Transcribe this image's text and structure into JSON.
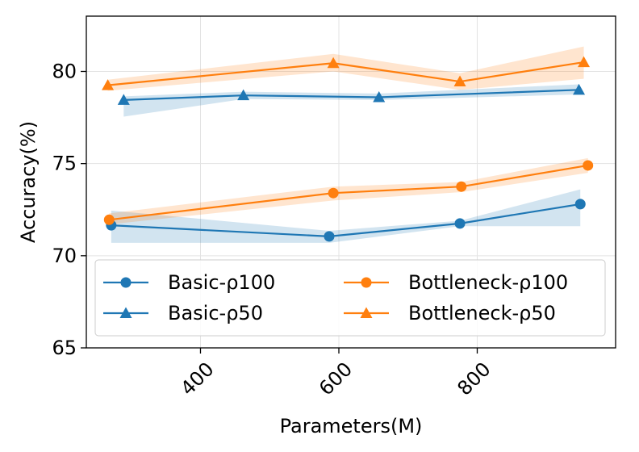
{
  "chart_data": {
    "type": "line",
    "title": "",
    "xlabel": "Parameters(M)",
    "ylabel": "Accuracy(%)",
    "xlim": [
      235,
      1000
    ],
    "ylim": [
      65,
      83
    ],
    "xticks": [
      400,
      600,
      800
    ],
    "xtick_labels": [
      "400",
      "600",
      "800"
    ],
    "yticks": [
      65,
      70,
      75,
      80
    ],
    "ytick_labels": [
      "65",
      "70",
      "75",
      "80"
    ],
    "grid": true,
    "legend": {
      "placement": "lower-left",
      "columns": 2
    },
    "series": [
      {
        "name": "Basic-ρ100",
        "color": "#1f77b4",
        "marker": "circle",
        "x": [
          271,
          586,
          775,
          949
        ],
        "y": [
          71.65,
          71.05,
          71.75,
          72.8
        ],
        "lower": [
          70.7,
          70.7,
          71.6,
          71.6
        ],
        "upper": [
          72.45,
          71.35,
          71.9,
          73.6
        ]
      },
      {
        "name": "Basic-ρ50",
        "color": "#1f77b4",
        "marker": "triangle",
        "x": [
          289,
          462,
          658,
          947
        ],
        "y": [
          78.45,
          78.7,
          78.6,
          79.0
        ],
        "lower": [
          77.55,
          78.5,
          78.45,
          78.75
        ],
        "upper": [
          78.65,
          78.9,
          78.8,
          79.3
        ]
      },
      {
        "name": "Bottleneck-ρ100",
        "color": "#ff7f0e",
        "marker": "circle",
        "x": [
          268,
          592,
          777,
          960
        ],
        "y": [
          71.95,
          73.4,
          73.75,
          74.9
        ],
        "lower": [
          71.7,
          73.0,
          73.45,
          74.5
        ],
        "upper": [
          72.3,
          73.75,
          74.0,
          75.3
        ]
      },
      {
        "name": "Bottleneck-ρ50",
        "color": "#ff7f0e",
        "marker": "triangle",
        "x": [
          266,
          592,
          775,
          954
        ],
        "y": [
          79.25,
          80.45,
          79.45,
          80.5
        ],
        "lower": [
          78.95,
          80.0,
          79.0,
          79.6
        ],
        "upper": [
          79.55,
          80.95,
          79.9,
          81.35
        ]
      }
    ]
  }
}
